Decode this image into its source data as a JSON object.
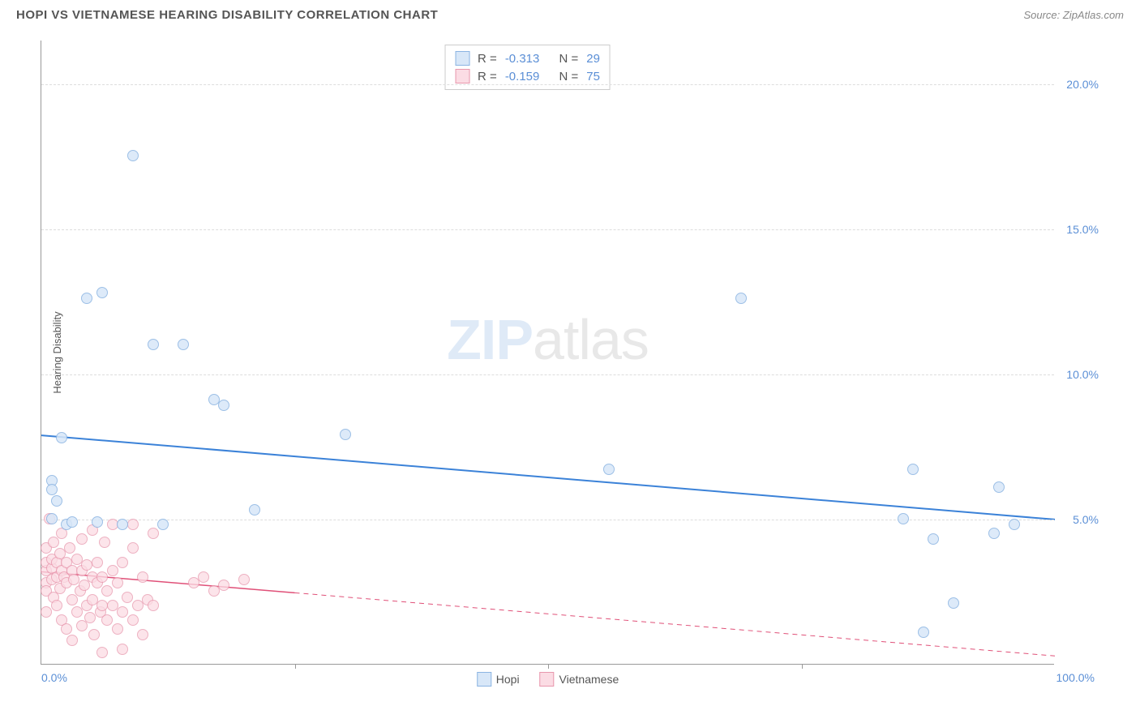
{
  "header": {
    "title": "HOPI VS VIETNAMESE HEARING DISABILITY CORRELATION CHART",
    "source": "Source: ZipAtlas.com"
  },
  "chart": {
    "type": "scatter",
    "y_axis_label": "Hearing Disability",
    "xlim": [
      0,
      100
    ],
    "ylim": [
      0,
      21.5
    ],
    "x_ticks": [
      0,
      100
    ],
    "x_tick_labels": [
      "0.0%",
      "100.0%"
    ],
    "minor_x_ticks": [
      25,
      50,
      75
    ],
    "y_ticks": [
      5,
      10,
      15,
      20
    ],
    "y_tick_labels": [
      "5.0%",
      "10.0%",
      "15.0%",
      "20.0%"
    ],
    "background_color": "#ffffff",
    "grid_color": "#dddddd",
    "grid_style": "dashed",
    "axis_color": "#999999",
    "tick_label_color": "#5b8fd6",
    "watermark_text_bold": "ZIP",
    "watermark_text_light": "atlas",
    "series": {
      "hopi": {
        "label": "Hopi",
        "marker_fill": "#d8e7f8",
        "marker_stroke": "#8bb4e2",
        "marker_size": 14,
        "marker_opacity": 0.85,
        "stats": {
          "R": "-0.313",
          "N": "29"
        },
        "regression": {
          "color": "#3b82d8",
          "width": 2,
          "style": "solid",
          "x1": 0,
          "y1": 7.9,
          "x2": 100,
          "y2": 5.0
        },
        "points": [
          {
            "x": 1,
            "y": 6.3
          },
          {
            "x": 1,
            "y": 6.0
          },
          {
            "x": 1.5,
            "y": 5.6
          },
          {
            "x": 2,
            "y": 7.8
          },
          {
            "x": 1,
            "y": 5.0
          },
          {
            "x": 2.5,
            "y": 4.8
          },
          {
            "x": 3,
            "y": 4.9
          },
          {
            "x": 5.5,
            "y": 4.9
          },
          {
            "x": 8,
            "y": 4.8
          },
          {
            "x": 12,
            "y": 4.8
          },
          {
            "x": 4.5,
            "y": 12.6
          },
          {
            "x": 6,
            "y": 12.8
          },
          {
            "x": 9,
            "y": 17.5
          },
          {
            "x": 11,
            "y": 11.0
          },
          {
            "x": 14,
            "y": 11.0
          },
          {
            "x": 17,
            "y": 9.1
          },
          {
            "x": 18,
            "y": 8.9
          },
          {
            "x": 21,
            "y": 5.3
          },
          {
            "x": 30,
            "y": 7.9
          },
          {
            "x": 56,
            "y": 6.7
          },
          {
            "x": 69,
            "y": 12.6
          },
          {
            "x": 86,
            "y": 6.7
          },
          {
            "x": 85,
            "y": 5.0
          },
          {
            "x": 88,
            "y": 4.3
          },
          {
            "x": 87,
            "y": 1.1
          },
          {
            "x": 90,
            "y": 2.1
          },
          {
            "x": 94,
            "y": 4.5
          },
          {
            "x": 94.5,
            "y": 6.1
          },
          {
            "x": 96,
            "y": 4.8
          }
        ]
      },
      "vietnamese": {
        "label": "Vietnamese",
        "marker_fill": "#fbdce4",
        "marker_stroke": "#e897ad",
        "marker_size": 14,
        "marker_opacity": 0.75,
        "stats": {
          "R": "-0.159",
          "N": "75"
        },
        "regression": {
          "color": "#e05078",
          "width": 1.5,
          "solid_until_x": 25,
          "style": "dashed",
          "x1": 0,
          "y1": 3.2,
          "x2": 100,
          "y2": 0.3
        },
        "points": [
          {
            "x": 0.5,
            "y": 3.2
          },
          {
            "x": 0.5,
            "y": 3.5
          },
          {
            "x": 0.5,
            "y": 2.8
          },
          {
            "x": 0.5,
            "y": 2.5
          },
          {
            "x": 0.5,
            "y": 4.0
          },
          {
            "x": 0.5,
            "y": 1.8
          },
          {
            "x": 0.8,
            "y": 5.0
          },
          {
            "x": 1,
            "y": 3.3
          },
          {
            "x": 1,
            "y": 2.9
          },
          {
            "x": 1,
            "y": 3.6
          },
          {
            "x": 1.2,
            "y": 2.3
          },
          {
            "x": 1.2,
            "y": 4.2
          },
          {
            "x": 1.5,
            "y": 3.0
          },
          {
            "x": 1.5,
            "y": 3.5
          },
          {
            "x": 1.5,
            "y": 2.0
          },
          {
            "x": 1.8,
            "y": 3.8
          },
          {
            "x": 1.8,
            "y": 2.6
          },
          {
            "x": 2,
            "y": 3.2
          },
          {
            "x": 2,
            "y": 1.5
          },
          {
            "x": 2,
            "y": 4.5
          },
          {
            "x": 2.2,
            "y": 3.0
          },
          {
            "x": 2.5,
            "y": 2.8
          },
          {
            "x": 2.5,
            "y": 3.5
          },
          {
            "x": 2.5,
            "y": 1.2
          },
          {
            "x": 2.8,
            "y": 4.0
          },
          {
            "x": 3,
            "y": 3.2
          },
          {
            "x": 3,
            "y": 2.2
          },
          {
            "x": 3,
            "y": 0.8
          },
          {
            "x": 3.2,
            "y": 2.9
          },
          {
            "x": 3.5,
            "y": 3.6
          },
          {
            "x": 3.5,
            "y": 1.8
          },
          {
            "x": 3.8,
            "y": 2.5
          },
          {
            "x": 4,
            "y": 3.2
          },
          {
            "x": 4,
            "y": 1.3
          },
          {
            "x": 4,
            "y": 4.3
          },
          {
            "x": 4.2,
            "y": 2.7
          },
          {
            "x": 4.5,
            "y": 2.0
          },
          {
            "x": 4.5,
            "y": 3.4
          },
          {
            "x": 4.8,
            "y": 1.6
          },
          {
            "x": 5,
            "y": 3.0
          },
          {
            "x": 5,
            "y": 2.2
          },
          {
            "x": 5,
            "y": 4.6
          },
          {
            "x": 5.2,
            "y": 1.0
          },
          {
            "x": 5.5,
            "y": 2.8
          },
          {
            "x": 5.5,
            "y": 3.5
          },
          {
            "x": 5.8,
            "y": 1.8
          },
          {
            "x": 6,
            "y": 3.0
          },
          {
            "x": 6,
            "y": 2.0
          },
          {
            "x": 6,
            "y": 0.4
          },
          {
            "x": 6.2,
            "y": 4.2
          },
          {
            "x": 6.5,
            "y": 2.5
          },
          {
            "x": 6.5,
            "y": 1.5
          },
          {
            "x": 7,
            "y": 3.2
          },
          {
            "x": 7,
            "y": 2.0
          },
          {
            "x": 7,
            "y": 4.8
          },
          {
            "x": 7.5,
            "y": 1.2
          },
          {
            "x": 7.5,
            "y": 2.8
          },
          {
            "x": 8,
            "y": 3.5
          },
          {
            "x": 8,
            "y": 1.8
          },
          {
            "x": 8,
            "y": 0.5
          },
          {
            "x": 8.5,
            "y": 2.3
          },
          {
            "x": 9,
            "y": 4.0
          },
          {
            "x": 9,
            "y": 1.5
          },
          {
            "x": 9,
            "y": 4.8
          },
          {
            "x": 9.5,
            "y": 2.0
          },
          {
            "x": 10,
            "y": 3.0
          },
          {
            "x": 10,
            "y": 1.0
          },
          {
            "x": 10.5,
            "y": 2.2
          },
          {
            "x": 11,
            "y": 2.0
          },
          {
            "x": 11,
            "y": 4.5
          },
          {
            "x": 15,
            "y": 2.8
          },
          {
            "x": 16,
            "y": 3.0
          },
          {
            "x": 17,
            "y": 2.5
          },
          {
            "x": 18,
            "y": 2.7
          },
          {
            "x": 20,
            "y": 2.9
          }
        ]
      }
    }
  }
}
